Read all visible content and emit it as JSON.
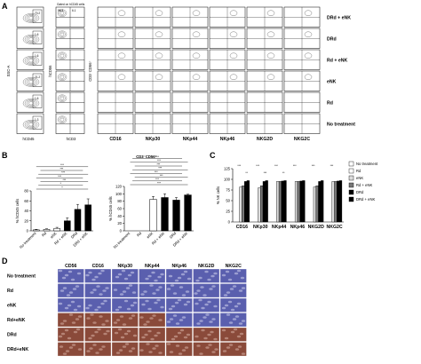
{
  "figure": {
    "panels": {
      "A": {
        "letter": "A",
        "gating_note": "Gated on hCD45 cells",
        "axis_labels": {
          "ssc": "SSC-A",
          "hcd45": "hCD45",
          "hcd56": "hCD56",
          "hcd3": "hCD3",
          "cd3cd56": "CD3⁻CD56⁺"
        },
        "rows": [
          "DRd + eNK",
          "DRd",
          "Rd + eNK",
          "eNK",
          "Rd",
          "No treatment"
        ],
        "hcd45_values": [
          "70.2",
          "1.6",
          "1.6",
          "21.2",
          "1.6",
          "1.3"
        ],
        "cd56_values": [
          "98.3",
          "6.1"
        ],
        "markers": [
          "CD16",
          "NKp30",
          "NKp44",
          "NKp46",
          "NKG2D",
          "NKG2C"
        ]
      },
      "B": {
        "letter": "B",
        "charts": [
          {
            "title": "",
            "ylabel": "% hCD45 cells",
            "yticks": [
              "0",
              "20",
              "40",
              "60",
              "80"
            ],
            "categories": [
              "No treatment",
              "Rd",
              "eNK",
              "Rd + eNK",
              "DRd",
              "DRd + eNK"
            ],
            "sig": [
              "*",
              "*",
              "***",
              "***",
              "***",
              "***",
              "***"
            ]
          },
          {
            "title": "CD3⁻CD56⁺",
            "ylabel": "% hCD45 cells",
            "yticks": [
              "0",
              "20",
              "40",
              "60",
              "80",
              "100",
              "120"
            ],
            "categories": [
              "No treatment",
              "Rd",
              "eNK",
              "Rd + eNK",
              "DRd",
              "DRd + eNK"
            ],
            "sig": [
              "***",
              "***",
              "***",
              "***",
              "***",
              "***",
              "***",
              "***"
            ]
          }
        ]
      },
      "C": {
        "letter": "C",
        "ylabel": "% NK cells",
        "yticks": [
          "0",
          "25",
          "50",
          "75",
          "100",
          "125"
        ],
        "markers": [
          "CD16",
          "NKp30",
          "NKp44",
          "NKp46",
          "NKG2D",
          "NKG2C"
        ],
        "legend": [
          "No treatment",
          "Rd",
          "eNK",
          "Rd + eNK",
          "DRd",
          "DRd + eNK"
        ],
        "sig": [
          "***",
          "***",
          "***",
          "***",
          "***",
          "***",
          "**",
          "***",
          "**"
        ]
      },
      "D": {
        "letter": "D",
        "columns": [
          "CD56",
          "CD16",
          "NKp30",
          "NKp44",
          "NKp46",
          "NKG2D",
          "NKG2C"
        ],
        "rows": [
          "No treatment",
          "Rd",
          "eNK",
          "Rd+eNK",
          "DRd",
          "DRd+eNK"
        ]
      }
    },
    "colors": {
      "tissue_blue": "#5a5fae",
      "tissue_brown": "#8a4a3a",
      "ink": "#000000"
    },
    "chart_data": [
      {
        "type": "bar",
        "categories": [
          "No treatment",
          "Rd",
          "eNK",
          "Rd + eNK",
          "DRd",
          "DRd + eNK"
        ],
        "series": [
          {
            "values": [
              2,
              3,
              5,
              20,
              43,
              52
            ]
          }
        ],
        "errors": [
          1,
          1,
          2,
          6,
          10,
          12
        ],
        "ylabel": "% hCD45 cells",
        "ylim": [
          0,
          80
        ]
      },
      {
        "type": "bar",
        "categories": [
          "No treatment",
          "Rd",
          "eNK",
          "Rd + eNK",
          "DRd",
          "DRd + eNK"
        ],
        "series": [
          {
            "values": [
              0,
              0,
              85,
              90,
              83,
              97
            ]
          }
        ],
        "errors": [
          0,
          0,
          8,
          10,
          7,
          2
        ],
        "title": "CD3⁻CD56⁺",
        "ylabel": "% hCD45 cells",
        "ylim": [
          0,
          120
        ]
      },
      {
        "type": "bar",
        "categories": [
          "CD16",
          "NKp30",
          "NKp44",
          "NKp46",
          "NKG2D",
          "NKG2C"
        ],
        "series": [
          {
            "name": "No treatment",
            "values": [
              0,
              0,
              0,
              0,
              0,
              0
            ]
          },
          {
            "name": "Rd",
            "values": [
              0,
              0,
              0,
              0,
              0,
              0
            ]
          },
          {
            "name": "eNK",
            "values": [
              82,
              80,
              95,
              95,
              82,
              95
            ]
          },
          {
            "name": "Rd + eNK",
            "values": [
              85,
              85,
              95,
              95,
              85,
              95
            ]
          },
          {
            "name": "DRd",
            "values": [
              95,
              95,
              96,
              96,
              95,
              96
            ]
          },
          {
            "name": "DRd + eNK",
            "values": [
              97,
              97,
              97,
              97,
              97,
              97
            ]
          }
        ],
        "ylabel": "% NK cells",
        "ylim": [
          0,
          125
        ]
      }
    ]
  }
}
